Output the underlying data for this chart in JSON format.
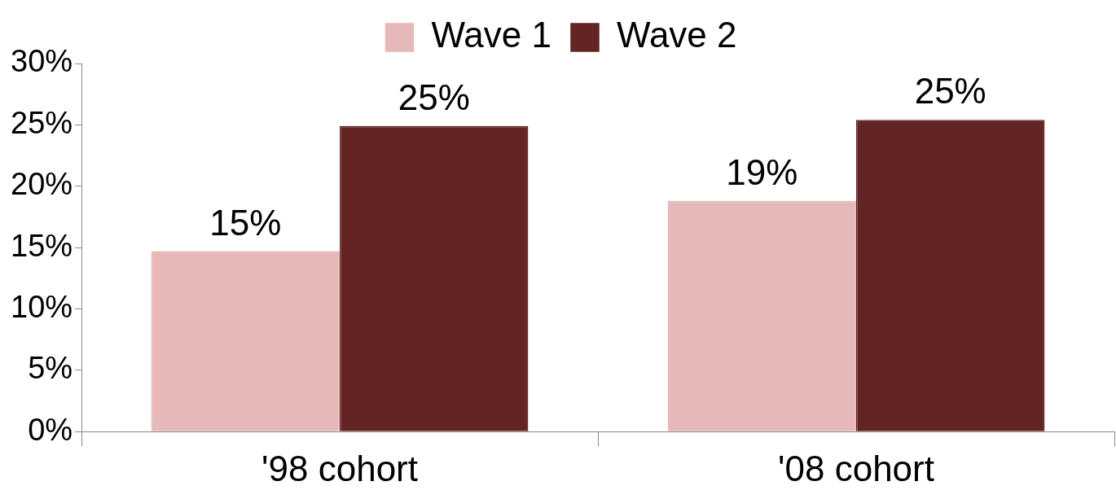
{
  "chart_data": {
    "type": "bar",
    "categories": [
      "'98 cohort",
      "'08 cohort"
    ],
    "series": [
      {
        "name": "Wave 1",
        "color": "#e6b8b7",
        "values": [
          14.7,
          18.8
        ],
        "value_labels": [
          "15%",
          "19%"
        ]
      },
      {
        "name": "Wave 2",
        "color": "#632523",
        "values": [
          24.9,
          25.4
        ],
        "value_labels": [
          "25%",
          "25%"
        ]
      }
    ],
    "ylim": [
      0,
      30
    ],
    "yticks": [
      {
        "value": 0,
        "label": "0%"
      },
      {
        "value": 5,
        "label": "5%"
      },
      {
        "value": 10,
        "label": "10%"
      },
      {
        "value": 15,
        "label": "15%"
      },
      {
        "value": 20,
        "label": "20%"
      },
      {
        "value": 25,
        "label": "25%"
      },
      {
        "value": 30,
        "label": "30%"
      }
    ],
    "grid": false,
    "legend": "top"
  }
}
